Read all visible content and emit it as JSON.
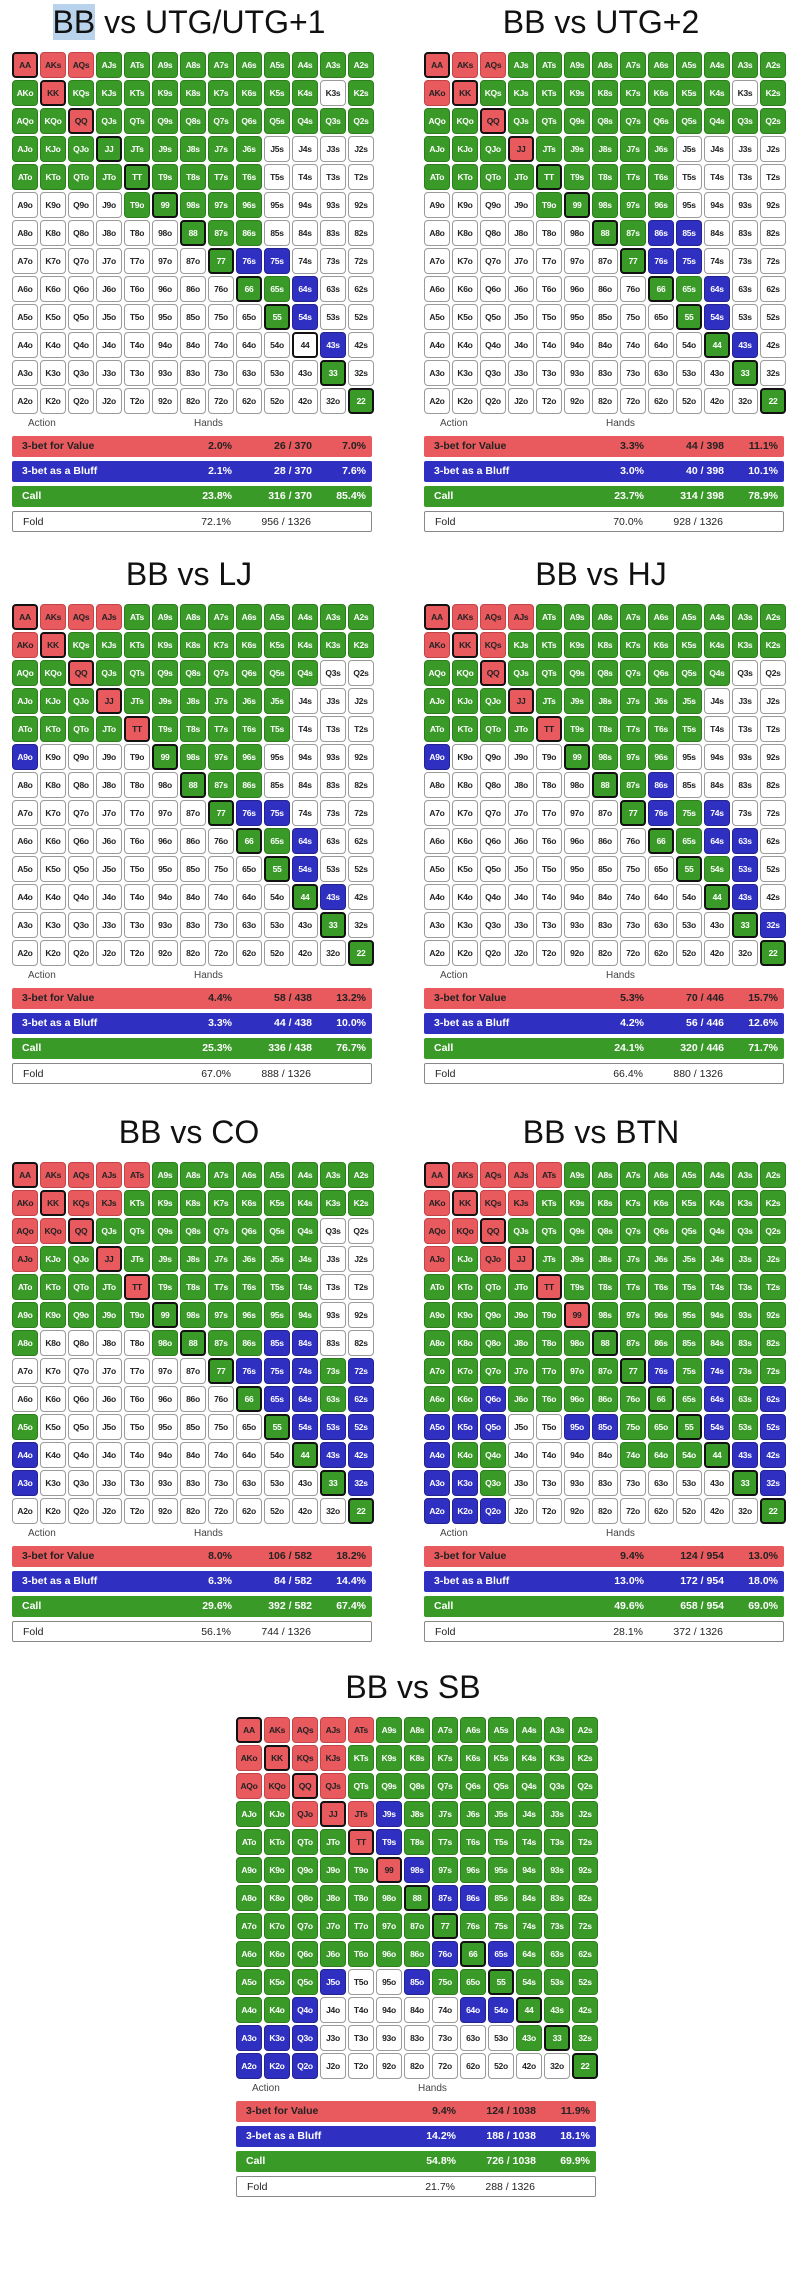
{
  "colors": {
    "value": "#e85a5e",
    "bluff": "#2f2fc2",
    "call": "#3a9a28",
    "fold": "#ffffff"
  },
  "legend": {
    "action": "Action",
    "hands": "Hands"
  },
  "ranks": [
    "A",
    "K",
    "Q",
    "J",
    "T",
    "9",
    "8",
    "7",
    "6",
    "5",
    "4",
    "3",
    "2"
  ],
  "panels": [
    {
      "id": "utg",
      "title_prefix": "BB",
      "title_rest": " vs UTG/UTG+1",
      "grid": [
        "VVVCCCCCCCCCC",
        "CVCCCCCCCCCFC",
        "CCVCCCCCCCCCC",
        "CCCCCCCCCFFFF",
        "CCCCCCCCCFFFF",
        "FFFFCCCCCFFFF",
        "FFFFFFCCCFFFF",
        "FFFFFFFCBBFFF",
        "FFFFFFFFCCBFF",
        "FFFFFFFFFCBFF",
        "FFFFFFFFFFFBF",
        "FFFFFFFFFFFCF",
        "FFFFFFFFFFFFC"
      ],
      "stats": {
        "value": {
          "label": "3-bet for Value",
          "pct": "2.0%",
          "frac": "26 / 370",
          "share": "7.0%"
        },
        "bluff": {
          "label": "3-bet as a Bluff",
          "pct": "2.1%",
          "frac": "28 / 370",
          "share": "7.6%"
        },
        "call": {
          "label": "Call",
          "pct": "23.8%",
          "frac": "316 / 370",
          "share": "85.4%"
        },
        "fold": {
          "label": "Fold",
          "pct": "72.1%",
          "frac": "956 / 1326"
        }
      }
    },
    {
      "id": "utg2",
      "title_prefix": "",
      "title_rest": "BB vs UTG+2",
      "grid": [
        "VVVCCCCCCCCCC",
        "VVCCCCCCCCCFC",
        "CCVCCCCCCCCCC",
        "CCCVCCCCCFFFF",
        "CCCCCCCCCFFFF",
        "FFFFCCCCCFFFF",
        "FFFFFFCCBBFFF",
        "FFFFFFFCBBFFF",
        "FFFFFFFFCCBFF",
        "FFFFFFFFFCBFF",
        "FFFFFFFFFFCBF",
        "FFFFFFFFFFFCF",
        "FFFFFFFFFFFFC"
      ],
      "stats": {
        "value": {
          "label": "3-bet for Value",
          "pct": "3.3%",
          "frac": "44 / 398",
          "share": "11.1%"
        },
        "bluff": {
          "label": "3-bet as a Bluff",
          "pct": "3.0%",
          "frac": "40 / 398",
          "share": "10.1%"
        },
        "call": {
          "label": "Call",
          "pct": "23.7%",
          "frac": "314 / 398",
          "share": "78.9%"
        },
        "fold": {
          "label": "Fold",
          "pct": "70.0%",
          "frac": "928 / 1326"
        }
      }
    },
    {
      "id": "lj",
      "title_prefix": "",
      "title_rest": "BB vs LJ",
      "grid": [
        "VVVVCCCCCCCCC",
        "VVCCCCCCCCCCC",
        "CCVCCCCCCCCFF",
        "CCCVCCCCCCFFF",
        "CCCCVCCCCCFFF",
        "BFFFFCCCCFFFF",
        "FFFFFFCCCFFFF",
        "FFFFFFFCBBFFF",
        "FFFFFFFFCCBFF",
        "FFFFFFFFFCBFF",
        "FFFFFFFFFFCBF",
        "FFFFFFFFFFFCF",
        "FFFFFFFFFFFFC"
      ],
      "stats": {
        "value": {
          "label": "3-bet for Value",
          "pct": "4.4%",
          "frac": "58 / 438",
          "share": "13.2%"
        },
        "bluff": {
          "label": "3-bet as a Bluff",
          "pct": "3.3%",
          "frac": "44 / 438",
          "share": "10.0%"
        },
        "call": {
          "label": "Call",
          "pct": "25.3%",
          "frac": "336 / 438",
          "share": "76.7%"
        },
        "fold": {
          "label": "Fold",
          "pct": "67.0%",
          "frac": "888 / 1326"
        }
      }
    },
    {
      "id": "hj",
      "title_prefix": "",
      "title_rest": "BB vs HJ",
      "grid": [
        "VVVVCCCCCCCCC",
        "VVVCCCCCCCCCC",
        "CCVCCCCCCCCFF",
        "CCCVCCCCCCFFF",
        "CCCCVCCCCCFFF",
        "BFFFFCCCCFFFF",
        "FFFFFFCCBFFFF",
        "FFFFFFFCBCBFF",
        "FFFFFFFFCCBBF",
        "FFFFFFFFFCCBF",
        "FFFFFFFFFFCBF",
        "FFFFFFFFFFFCB",
        "FFFFFFFFFFFFC"
      ],
      "stats": {
        "value": {
          "label": "3-bet for Value",
          "pct": "5.3%",
          "frac": "70 / 446",
          "share": "15.7%"
        },
        "bluff": {
          "label": "3-bet as a Bluff",
          "pct": "4.2%",
          "frac": "56 / 446",
          "share": "12.6%"
        },
        "call": {
          "label": "Call",
          "pct": "24.1%",
          "frac": "320 / 446",
          "share": "71.7%"
        },
        "fold": {
          "label": "Fold",
          "pct": "66.4%",
          "frac": "880 / 1326"
        }
      }
    },
    {
      "id": "co",
      "title_prefix": "",
      "title_rest": "BB vs CO",
      "grid": [
        "VVVVVCCCCCCCC",
        "VVVVCCCCCCCCC",
        "VVVCCCCCCCCFF",
        "VCCVCCCCCCCFF",
        "CCCCVCCCCCCFF",
        "CCCCCCCCCCCFF",
        "CFFFFCCCCBBFF",
        "FFFFFFFCBBBCB",
        "FFFFFFFFCBBCB",
        "CFFFFFFFFCBBB",
        "BFFFFFFFFFCBB",
        "BFFFFFFFFFFCB",
        "FFFFFFFFFFFFC"
      ],
      "stats": {
        "value": {
          "label": "3-bet for Value",
          "pct": "8.0%",
          "frac": "106 / 582",
          "share": "18.2%"
        },
        "bluff": {
          "label": "3-bet as a Bluff",
          "pct": "6.3%",
          "frac": "84 / 582",
          "share": "14.4%"
        },
        "call": {
          "label": "Call",
          "pct": "29.6%",
          "frac": "392 / 582",
          "share": "67.4%"
        },
        "fold": {
          "label": "Fold",
          "pct": "56.1%",
          "frac": "744 / 1326"
        }
      }
    },
    {
      "id": "btn",
      "title_prefix": "",
      "title_rest": "BB vs BTN",
      "grid": [
        "VVVVVCCCCCCCC",
        "VVVVCCCCCCCCC",
        "VVVCCCCCCCCCC",
        "VCVVCCCCCCCCC",
        "CCCCVCCCCCCCC",
        "CCCCCVCCCCCCC",
        "CCCCCCCCCCCCC",
        "CCCCCCCCBCBCC",
        "CCBCCCCCCCBCB",
        "BBBFFBBCCCBCB",
        "BCCFFFFCCCCBB",
        "BBCFFFFFFFFCB",
        "BBBFFFFFFFFFC"
      ],
      "stats": {
        "value": {
          "label": "3-bet for Value",
          "pct": "9.4%",
          "frac": "124 / 954",
          "share": "13.0%"
        },
        "bluff": {
          "label": "3-bet as a Bluff",
          "pct": "13.0%",
          "frac": "172 / 954",
          "share": "18.0%"
        },
        "call": {
          "label": "Call",
          "pct": "49.6%",
          "frac": "658 / 954",
          "share": "69.0%"
        },
        "fold": {
          "label": "Fold",
          "pct": "28.1%",
          "frac": "372 / 1326"
        }
      }
    },
    {
      "id": "sb",
      "title_prefix": "",
      "title_rest": "BB vs SB",
      "grid": [
        "VVVVVCCCCCCCC",
        "VVVVCCCCCCCCC",
        "VVVVCCCCCCCCC",
        "CCVVVBCCCCCCC",
        "CCCCVBCCCCCCC",
        "CCCCCVBCCCCCC",
        "CCCCCCCBBCCCC",
        "CCCCCCCCCCCCC",
        "CCCCCCCBCBCCC",
        "CCCBFFBCCCCCC",
        "CCBFFFFFBBCCC",
        "BBBFFFFFFFCCC",
        "BBBFFFFFFFFFC"
      ],
      "stats": {
        "value": {
          "label": "3-bet for Value",
          "pct": "9.4%",
          "frac": "124 / 1038",
          "share": "11.9%"
        },
        "bluff": {
          "label": "3-bet as a Bluff",
          "pct": "14.2%",
          "frac": "188 / 1038",
          "share": "18.1%"
        },
        "call": {
          "label": "Call",
          "pct": "54.8%",
          "frac": "726 / 1038",
          "share": "69.9%"
        },
        "fold": {
          "label": "Fold",
          "pct": "21.7%",
          "frac": "288 / 1326"
        }
      }
    }
  ]
}
